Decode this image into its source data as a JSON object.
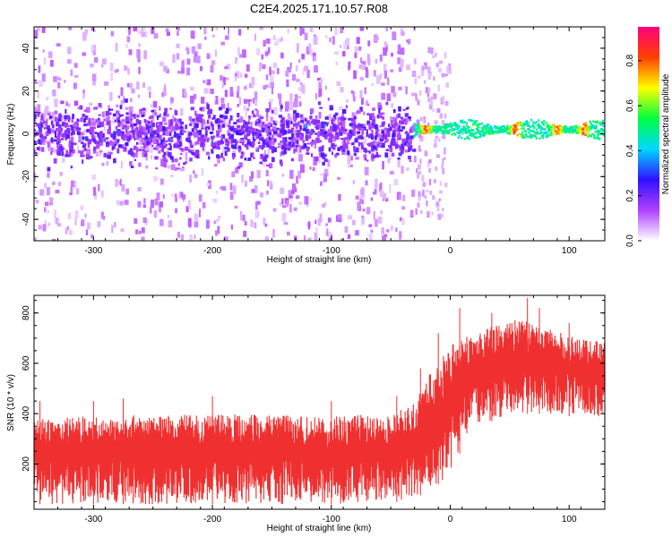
{
  "title": "C2E4.2025.171.10.57.R08",
  "chart_data": [
    {
      "type": "heatmap",
      "xlabel": "Height of straight line (km)",
      "ylabel": "Frequency (Hz)",
      "xlim": [
        -350,
        130
      ],
      "ylim": [
        -50,
        50
      ],
      "xticks": [
        -300,
        -200,
        -100,
        0,
        100
      ],
      "yticks": [
        -40,
        -20,
        0,
        20,
        40
      ],
      "colorbar": {
        "label": "Normalized spectral amplitude",
        "range": [
          0.0,
          0.95
        ],
        "ticks": [
          0.0,
          0.2,
          0.4,
          0.6,
          0.8
        ],
        "colormap": [
          "#ffffff",
          "#b040ff",
          "#3010ff",
          "#00d8ff",
          "#00ff40",
          "#ffff00",
          "#ff4000",
          "#ff0080"
        ]
      },
      "features": [
        {
          "x_range": [
            -350,
            -30
          ],
          "freq_center": 0,
          "core_band": [
            -8,
            8
          ],
          "scatter_band": [
            -50,
            50
          ],
          "amplitude": "0.1-0.3, isolated spots up to 0.35"
        },
        {
          "x_range": [
            -30,
            130
          ],
          "freq_center": 2,
          "core_band": [
            -3,
            6
          ],
          "amplitude": "0.4-0.9, peaks near x = -20, 55, 90, 112"
        }
      ]
    },
    {
      "type": "line",
      "xlabel": "Height of straight line (km)",
      "ylabel": "SNR (10 * v/v)",
      "xlim": [
        -350,
        130
      ],
      "ylim": [
        20,
        870
      ],
      "xticks": [
        -300,
        -200,
        -100,
        0,
        100
      ],
      "yticks": [
        200,
        400,
        600,
        800
      ],
      "series_color": "#f03030",
      "envelope": {
        "x": [
          -350,
          -300,
          -200,
          -100,
          -50,
          -30,
          -20,
          -10,
          0,
          10,
          20,
          40,
          60,
          80,
          100,
          130
        ],
        "low": [
          40,
          40,
          40,
          40,
          45,
          60,
          90,
          120,
          160,
          260,
          340,
          380,
          400,
          400,
          390,
          380
        ],
        "high": [
          380,
          390,
          400,
          390,
          400,
          440,
          540,
          600,
          680,
          700,
          720,
          760,
          780,
          740,
          720,
          680
        ],
        "spikes": [
          [
            -345,
            450
          ],
          [
            -300,
            450
          ],
          [
            -275,
            460
          ],
          [
            -200,
            470
          ],
          [
            -100,
            450
          ],
          [
            -45,
            470
          ],
          [
            -25,
            580
          ],
          [
            -10,
            720
          ],
          [
            8,
            820
          ],
          [
            35,
            800
          ],
          [
            65,
            860
          ],
          [
            75,
            820
          ],
          [
            100,
            760
          ]
        ]
      }
    }
  ]
}
